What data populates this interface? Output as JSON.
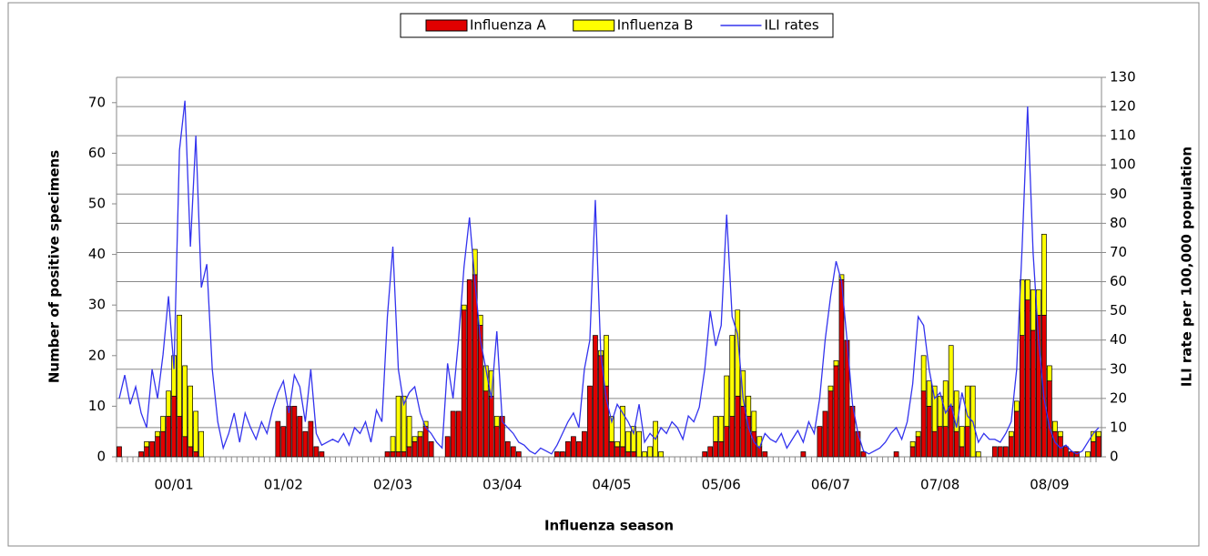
{
  "chart_data": {
    "type": "bar_line",
    "x_label": "Influenza season",
    "y_label": "Number of positive specimens",
    "y2_label": "ILI rate per 100,000 population",
    "legend": "top",
    "grid": true,
    "ylim": [
      0,
      75
    ],
    "yticks": [
      0,
      10,
      20,
      30,
      40,
      50,
      60,
      70
    ],
    "y2lim": [
      0,
      130
    ],
    "y2ticks": [
      0,
      10,
      20,
      30,
      40,
      50,
      60,
      70,
      80,
      90,
      100,
      110,
      120,
      130
    ],
    "categories": [
      null,
      null,
      null,
      null,
      null,
      null,
      null,
      null,
      null,
      null,
      "00/01",
      null,
      null,
      null,
      null,
      null,
      null,
      null,
      null,
      null,
      null,
      null,
      null,
      null,
      null,
      null,
      null,
      null,
      null,
      null,
      "01/02",
      null,
      null,
      null,
      null,
      null,
      null,
      null,
      null,
      null,
      null,
      null,
      null,
      null,
      null,
      null,
      null,
      null,
      null,
      null,
      "02/03",
      null,
      null,
      null,
      null,
      null,
      null,
      null,
      null,
      null,
      null,
      null,
      null,
      null,
      null,
      null,
      null,
      null,
      null,
      null,
      "03/04",
      null,
      null,
      null,
      null,
      null,
      null,
      null,
      null,
      null,
      null,
      null,
      null,
      null,
      null,
      null,
      null,
      null,
      null,
      null,
      "04/05",
      null,
      null,
      null,
      null,
      null,
      null,
      null,
      null,
      null,
      null,
      null,
      null,
      null,
      null,
      null,
      null,
      null,
      null,
      null,
      "05/06",
      null,
      null,
      null,
      null,
      null,
      null,
      null,
      null,
      null,
      null,
      null,
      null,
      null,
      null,
      null,
      null,
      null,
      null,
      null,
      "06/07",
      null,
      null,
      null,
      null,
      null,
      null,
      null,
      null,
      null,
      null,
      null,
      null,
      null,
      null,
      null,
      null,
      null,
      null,
      null,
      "07/08",
      null,
      null,
      null,
      null,
      null,
      null,
      null,
      null,
      null,
      null,
      null,
      null,
      null,
      null,
      null,
      null,
      null,
      null,
      null,
      "08/09",
      null,
      null,
      null,
      null,
      null,
      null,
      null,
      null,
      null
    ],
    "series": [
      {
        "name": "Influenza A",
        "type": "bar",
        "color": "#e00000",
        "values": [
          2,
          0,
          0,
          0,
          1,
          2,
          3,
          4,
          5,
          8,
          12,
          8,
          4,
          2,
          1,
          0,
          0,
          0,
          0,
          0,
          0,
          0,
          0,
          0,
          0,
          0,
          0,
          0,
          0,
          7,
          6,
          10,
          10,
          8,
          5,
          7,
          2,
          1,
          0,
          0,
          0,
          0,
          0,
          0,
          0,
          0,
          0,
          0,
          0,
          1,
          1,
          1,
          1,
          2,
          3,
          4,
          6,
          3,
          0,
          0,
          4,
          9,
          9,
          29,
          35,
          36,
          26,
          13,
          12,
          6,
          8,
          3,
          2,
          1,
          0,
          0,
          0,
          0,
          0,
          0,
          1,
          1,
          3,
          4,
          3,
          5,
          14,
          24,
          20,
          14,
          3,
          2,
          2,
          1,
          1,
          0,
          0,
          0,
          0,
          0,
          0,
          0,
          0,
          0,
          0,
          0,
          0,
          1,
          2,
          3,
          3,
          6,
          8,
          12,
          10,
          8,
          5,
          2,
          1,
          0,
          0,
          0,
          0,
          0,
          0,
          1,
          0,
          0,
          6,
          9,
          13,
          18,
          35,
          23,
          10,
          5,
          1,
          0,
          0,
          0,
          0,
          0,
          1,
          0,
          0,
          2,
          4,
          13,
          10,
          5,
          6,
          6,
          10,
          5,
          2,
          6,
          0,
          0,
          0,
          0,
          2,
          2,
          2,
          4,
          9,
          24,
          31,
          25,
          28,
          28,
          15,
          5,
          4,
          2,
          1,
          1,
          0,
          0,
          3,
          4
        ]
      },
      {
        "name": "Influenza B",
        "type": "bar",
        "color": "#ffff00",
        "values": [
          0,
          0,
          0,
          0,
          0,
          1,
          0,
          1,
          3,
          5,
          8,
          20,
          14,
          12,
          8,
          5,
          0,
          0,
          0,
          0,
          0,
          0,
          0,
          0,
          0,
          0,
          0,
          0,
          0,
          0,
          0,
          0,
          0,
          0,
          0,
          0,
          0,
          0,
          0,
          0,
          0,
          0,
          0,
          0,
          0,
          0,
          0,
          0,
          0,
          0,
          3,
          11,
          11,
          6,
          1,
          1,
          1,
          0,
          0,
          0,
          0,
          0,
          0,
          1,
          0,
          5,
          2,
          5,
          5,
          2,
          0,
          0,
          0,
          0,
          0,
          0,
          0,
          0,
          0,
          0,
          0,
          0,
          0,
          0,
          0,
          0,
          0,
          0,
          1,
          10,
          5,
          1,
          8,
          4,
          5,
          5,
          1,
          2,
          7,
          1,
          0,
          0,
          0,
          0,
          0,
          0,
          0,
          0,
          0,
          5,
          5,
          10,
          16,
          17,
          7,
          4,
          4,
          2,
          0,
          0,
          0,
          0,
          0,
          0,
          0,
          0,
          0,
          0,
          0,
          0,
          1,
          1,
          1,
          0,
          0,
          0,
          0,
          0,
          0,
          0,
          0,
          0,
          0,
          0,
          0,
          1,
          1,
          7,
          5,
          9,
          6,
          9,
          12,
          8,
          4,
          8,
          14,
          1,
          0,
          0,
          0,
          0,
          0,
          1,
          2,
          11,
          4,
          8,
          5,
          16,
          3,
          2,
          1,
          0,
          0,
          0,
          0,
          1,
          2,
          1
        ]
      },
      {
        "name": "ILI rates",
        "type": "line",
        "axis": "y2",
        "color": "#3333ee",
        "values": [
          20,
          28,
          18,
          24,
          15,
          10,
          30,
          20,
          35,
          55,
          30,
          105,
          122,
          72,
          110,
          58,
          66,
          30,
          12,
          3,
          8,
          15,
          5,
          15,
          10,
          6,
          12,
          8,
          16,
          22,
          26,
          15,
          28,
          24,
          12,
          30,
          8,
          4,
          5,
          6,
          5,
          8,
          4,
          10,
          8,
          12,
          5,
          16,
          12,
          48,
          72,
          30,
          18,
          22,
          24,
          15,
          10,
          8,
          5,
          3,
          32,
          20,
          40,
          65,
          82,
          60,
          40,
          30,
          20,
          43,
          12,
          10,
          8,
          5,
          4,
          2,
          1,
          3,
          2,
          1,
          4,
          8,
          12,
          15,
          10,
          30,
          40,
          88,
          35,
          20,
          12,
          18,
          15,
          12,
          8,
          18,
          5,
          8,
          6,
          10,
          8,
          12,
          10,
          6,
          14,
          12,
          17,
          30,
          50,
          38,
          45,
          83,
          48,
          42,
          20,
          10,
          5,
          3,
          8,
          6,
          5,
          8,
          3,
          6,
          9,
          5,
          12,
          8,
          20,
          40,
          55,
          67,
          60,
          40,
          18,
          8,
          2,
          1,
          2,
          3,
          5,
          8,
          10,
          6,
          12,
          25,
          48,
          45,
          30,
          20,
          22,
          15,
          18,
          10,
          22,
          14,
          12,
          5,
          8,
          6,
          6,
          5,
          8,
          12,
          30,
          72,
          120,
          70,
          40,
          20,
          10,
          5,
          3,
          4,
          2,
          1,
          2,
          5,
          8,
          10
        ]
      }
    ]
  }
}
